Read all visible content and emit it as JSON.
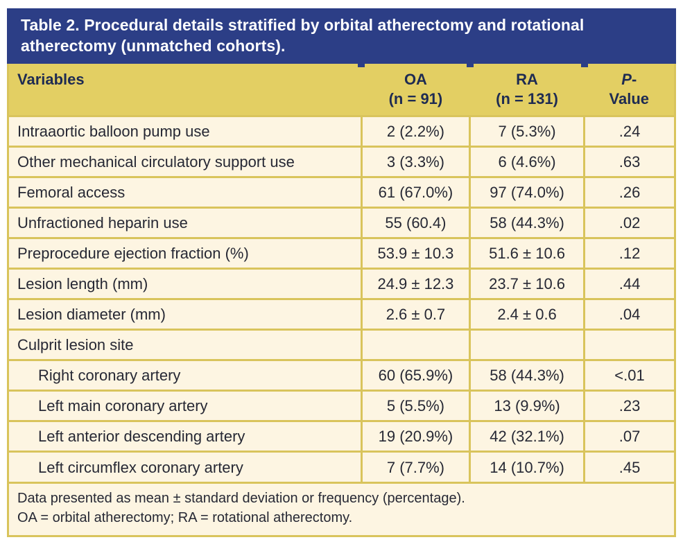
{
  "title": "Table 2. Procedural details stratified by orbital atherectomy and rotational atherectomy (unmatched cohorts).",
  "header": {
    "variables": "Variables",
    "oa": "OA",
    "oa_n": "(n = 91)",
    "ra": "RA",
    "ra_n": "(n = 131)",
    "p_italic": "P",
    "p_dash": "-",
    "p_value": "Value"
  },
  "rows": [
    {
      "variable": "Intraaortic balloon pump use",
      "oa": "2 (2.2%)",
      "ra": "7 (5.3%)",
      "p": ".24"
    },
    {
      "variable": "Other mechanical circulatory support use",
      "oa": "3 (3.3%)",
      "ra": "6 (4.6%)",
      "p": ".63"
    },
    {
      "variable": "Femoral access",
      "oa": "61 (67.0%)",
      "ra": "97 (74.0%)",
      "p": ".26"
    },
    {
      "variable": "Unfractioned heparin use",
      "oa": "55 (60.4)",
      "ra": "58 (44.3%)",
      "p": ".02"
    },
    {
      "variable": "Preprocedure ejection fraction (%)",
      "oa": "53.9 ± 10.3",
      "ra": "51.6 ± 10.6",
      "p": ".12"
    },
    {
      "variable": "Lesion length (mm)",
      "oa": "24.9 ± 12.3",
      "ra": "23.7 ± 10.6",
      "p": ".44"
    },
    {
      "variable": "Lesion diameter (mm)",
      "oa": "2.6 ± 0.7",
      "ra": "2.4 ± 0.6",
      "p": ".04"
    },
    {
      "variable": "Culprit lesion site",
      "oa": "",
      "ra": "",
      "p": ""
    },
    {
      "variable": "Right coronary artery",
      "oa": "60 (65.9%)",
      "ra": "58 (44.3%)",
      "p": "<.01"
    },
    {
      "variable": "Left main coronary artery",
      "oa": "5 (5.5%)",
      "ra": "13 (9.9%)",
      "p": ".23"
    },
    {
      "variable": "Left anterior descending artery",
      "oa": "19 (20.9%)",
      "ra": "42 (32.1%)",
      "p": ".07"
    },
    {
      "variable": "Left circumflex coronary artery",
      "oa": "7 (7.7%)",
      "ra": "14 (10.7%)",
      "p": ".45"
    }
  ],
  "footnotes": {
    "line1": "Data presented as mean ± standard deviation or frequency (percentage).",
    "line2": "OA = orbital atherectomy; RA = rotational atherectomy."
  },
  "colors": {
    "title_bar_bg": "#2c3e86",
    "title_text": "#ffffff",
    "header_bg": "#e3cf63",
    "header_text": "#1e2b52",
    "body_bg": "#fdf5e2",
    "body_text": "#262834",
    "border": "#d9c45c"
  }
}
